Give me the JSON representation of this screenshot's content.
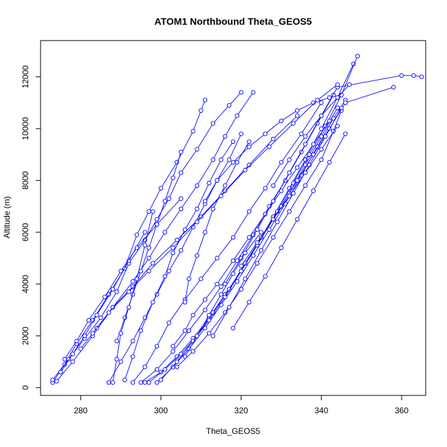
{
  "chart_data": {
    "type": "scatter",
    "title": "ATOM1 Northbound Theta_GEOS5",
    "xlabel": "Theta_GEOS5",
    "ylabel": "Altitude (m)",
    "xlim": [
      270,
      366
    ],
    "ylim": [
      -300,
      13400
    ],
    "x_ticks": [
      280,
      300,
      320,
      340,
      360
    ],
    "y_ticks": [
      0,
      2000,
      4000,
      6000,
      8000,
      10000,
      12000
    ],
    "x_tick_labels": [
      "280",
      "300",
      "320",
      "340",
      "360"
    ],
    "y_tick_labels": [
      "0",
      "2000",
      "4000",
      "6000",
      "8000",
      "10000",
      "12000"
    ],
    "grid": false,
    "legend": "none",
    "mark_color": "#0000ff",
    "series": [
      {
        "x": [
          273,
          276,
          279,
          283,
          287,
          291,
          294,
          297,
          300,
          304,
          308,
          310,
          311
        ],
        "y": [
          200,
          900,
          1700,
          2600,
          3600,
          4600,
          5900,
          6800,
          7700,
          8700,
          9900,
          10700,
          11100
        ]
      },
      {
        "x": [
          273,
          277,
          281,
          285,
          289,
          292,
          296,
          299,
          302,
          305,
          309,
          313,
          317,
          320
        ],
        "y": [
          300,
          1100,
          1900,
          2700,
          3700,
          4800,
          5700,
          6500,
          7300,
          8300,
          9200,
          10200,
          10900,
          11400
        ]
      },
      {
        "x": [
          274,
          278,
          283,
          288,
          293,
          297,
          301,
          305,
          309,
          313,
          316,
          319,
          323
        ],
        "y": [
          250,
          1000,
          2000,
          3100,
          4100,
          5000,
          6000,
          6900,
          7800,
          8800,
          9700,
          10500,
          11400
        ]
      },
      {
        "x": [
          287,
          290,
          293,
          296,
          299,
          302,
          305,
          308,
          311,
          314,
          317,
          320
        ],
        "y": [
          200,
          1000,
          1800,
          2700,
          3600,
          4500,
          5300,
          6200,
          7100,
          8000,
          8800,
          9800
        ]
      },
      {
        "x": [
          291,
          293,
          295,
          298,
          301,
          303,
          306,
          309,
          312,
          315,
          318
        ],
        "y": [
          300,
          1200,
          2200,
          3300,
          4300,
          5200,
          6100,
          6900,
          7900,
          8800,
          9500
        ]
      },
      {
        "x": [
          293,
          296,
          299,
          302,
          306,
          310,
          314,
          318,
          322,
          326,
          330,
          335,
          340
        ],
        "y": [
          200,
          800,
          1600,
          2500,
          3400,
          4200,
          5000,
          5800,
          6800,
          7700,
          8700,
          9800,
          11000
        ]
      },
      {
        "x": [
          295,
          299,
          303,
          307,
          311,
          315,
          319,
          323,
          327,
          331,
          335,
          339,
          343
        ],
        "y": [
          200,
          700,
          1400,
          2200,
          3000,
          3900,
          4900,
          5900,
          7000,
          8000,
          9100,
          10200,
          11300
        ]
      },
      {
        "x": [
          296,
          300,
          304,
          308,
          312,
          316,
          320,
          324,
          328,
          332,
          336,
          340,
          344,
          348
        ],
        "y": [
          200,
          600,
          1200,
          1900,
          2700,
          3600,
          4500,
          5500,
          6600,
          7700,
          8800,
          10000,
          11200,
          12500
        ]
      },
      {
        "x": [
          297,
          301,
          305,
          309,
          313,
          317,
          321,
          325,
          329,
          333,
          337,
          341,
          345,
          349
        ],
        "y": [
          200,
          700,
          1300,
          2000,
          2900,
          3800,
          4800,
          5800,
          6800,
          7900,
          9000,
          10100,
          11300,
          12800
        ]
      },
      {
        "x": [
          299,
          303,
          307,
          311,
          315,
          319,
          323,
          327,
          331,
          335,
          339,
          343,
          346
        ],
        "y": [
          200,
          800,
          1500,
          2300,
          3200,
          4100,
          5100,
          6100,
          7100,
          8200,
          9300,
          10400,
          11100
        ]
      },
      {
        "x": [
          300,
          304,
          308,
          312,
          316,
          320,
          324,
          328,
          332,
          336,
          340,
          344
        ],
        "y": [
          300,
          1000,
          1800,
          2600,
          3500,
          4500,
          5500,
          6500,
          7500,
          8600,
          9700,
          10800
        ]
      },
      {
        "x": [
          304,
          308,
          312,
          316,
          320,
          324,
          328,
          332,
          336,
          340,
          343,
          345
        ],
        "y": [
          800,
          1400,
          2100,
          2900,
          3800,
          4800,
          5800,
          6800,
          7800,
          8800,
          9900,
          10700
        ]
      },
      {
        "x": [
          303,
          306,
          308,
          311,
          314,
          318,
          322,
          326,
          330,
          334,
          338,
          342
        ],
        "y": [
          1600,
          2200,
          2800,
          3400,
          4000,
          4900,
          5800,
          6700,
          7600,
          8500,
          9400,
          10300
        ]
      },
      {
        "x": [
          316,
          320,
          324,
          328,
          332,
          336,
          340,
          344,
          360,
          363,
          365
        ],
        "y": [
          4000,
          5000,
          6100,
          7200,
          8300,
          9400,
          10500,
          11600,
          12050,
          12050,
          12000
        ]
      },
      {
        "x": [
          330,
          334,
          338,
          342,
          346,
          358
        ],
        "y": [
          7000,
          8000,
          9000,
          10000,
          11000,
          11600
        ]
      },
      {
        "x": [
          328,
          332,
          336,
          340,
          344,
          347
        ],
        "y": [
          7800,
          8800,
          9700,
          10500,
          11200,
          11700
        ]
      },
      {
        "x": [
          311,
          314,
          318,
          322,
          326,
          330,
          334,
          338,
          342
        ],
        "y": [
          7200,
          8000,
          8700,
          9300,
          9800,
          10300,
          10700,
          11000,
          11200
        ]
      },
      {
        "x": [
          289,
          291,
          293,
          295,
          297,
          299,
          301,
          303,
          305
        ],
        "y": [
          1800,
          2700,
          3600,
          4500,
          5400,
          6300,
          7200,
          8100,
          9100
        ]
      },
      {
        "x": [
          275,
          278,
          281,
          284,
          288,
          292,
          296
        ],
        "y": [
          600,
          1300,
          2000,
          2800,
          3800,
          4900,
          6000
        ]
      },
      {
        "x": [
          276,
          279,
          282,
          286,
          290,
          294,
          299,
          305
        ],
        "y": [
          1100,
          1800,
          2600,
          3500,
          4500,
          5400,
          6300,
          7300
        ]
      },
      {
        "x": [
          288,
          289,
          290,
          292,
          294,
          296,
          298
        ],
        "y": [
          200,
          1100,
          2100,
          3100,
          4200,
          5500,
          6800
        ]
      },
      {
        "x": [
          306,
          307,
          309,
          311,
          313,
          316,
          319,
          322
        ],
        "y": [
          3300,
          4200,
          5100,
          6000,
          6900,
          7800,
          8700,
          9500
        ]
      },
      {
        "x": [
          318,
          322,
          326,
          330,
          334,
          338,
          342,
          346
        ],
        "y": [
          2300,
          3300,
          4300,
          5400,
          6500,
          7600,
          8700,
          9800
        ]
      },
      {
        "x": [
          313,
          317,
          321,
          325,
          329,
          333,
          337,
          341,
          345
        ],
        "y": [
          2000,
          3100,
          4200,
          5300,
          6400,
          7500,
          8600,
          9700,
          10800
        ]
      },
      {
        "x": [
          320,
          324,
          328,
          332,
          336,
          340,
          344
        ],
        "y": [
          4700,
          5600,
          6500,
          7400,
          8300,
          9200,
          10100
        ]
      },
      {
        "x": [
          306,
          309,
          312,
          315,
          318,
          321,
          325
        ],
        "y": [
          1200,
          2000,
          2800,
          3600,
          4400,
          5200,
          6000
        ]
      },
      {
        "x": [
          280,
          284,
          288,
          293,
          298,
          304,
          310,
          316,
          322,
          328,
          334
        ],
        "y": [
          1500,
          2300,
          3100,
          3900,
          4800,
          5700,
          6600,
          7600,
          8600,
          9600,
          10500
        ]
      },
      {
        "x": [
          283,
          287,
          292,
          297,
          303,
          309,
          315,
          321,
          327,
          333,
          339,
          344
        ],
        "y": [
          2100,
          2900,
          3700,
          4500,
          5400,
          6400,
          7400,
          8400,
          9300,
          10200,
          11100,
          11700
        ]
      }
    ]
  }
}
